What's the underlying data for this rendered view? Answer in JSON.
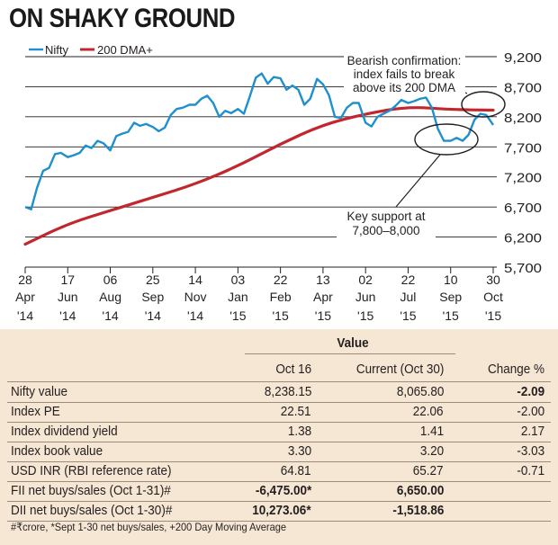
{
  "title": "ON SHAKY GROUND",
  "chart_data": {
    "type": "line",
    "legend": [
      "Nifty",
      "200 DMA+"
    ],
    "legend_position": "top-left",
    "y_axis_side": "right",
    "ylim": [
      5700,
      9200
    ],
    "yticks": [
      "9,200",
      "8,700",
      "8,200",
      "7,700",
      "7,200",
      "6,700",
      "6,200",
      "5,700"
    ],
    "ytick_values": [
      9200,
      8700,
      8200,
      7700,
      7200,
      6700,
      6200,
      5700
    ],
    "xticks": [
      {
        "top": "28",
        "mid": "Apr",
        "bot": "'14"
      },
      {
        "top": "17",
        "mid": "Jun",
        "bot": "'14"
      },
      {
        "top": "06",
        "mid": "Aug",
        "bot": "'14"
      },
      {
        "top": "25",
        "mid": "Sep",
        "bot": "'14"
      },
      {
        "top": "14",
        "mid": "Nov",
        "bot": "'14"
      },
      {
        "top": "03",
        "mid": "Jan",
        "bot": "'15"
      },
      {
        "top": "22",
        "mid": "Feb",
        "bot": "'15"
      },
      {
        "top": "13",
        "mid": "Apr",
        "bot": "'15"
      },
      {
        "top": "02",
        "mid": "Jun",
        "bot": "'15"
      },
      {
        "top": "22",
        "mid": "Jul",
        "bot": "'15"
      },
      {
        "top": "10",
        "mid": "Sep",
        "bot": "'15"
      },
      {
        "top": "30",
        "mid": "Oct",
        "bot": "'15"
      }
    ],
    "xtick_dates": [
      "2014-04-28",
      "2014-06-17",
      "2014-08-06",
      "2014-09-25",
      "2014-11-14",
      "2015-01-03",
      "2015-02-22",
      "2015-04-13",
      "2015-06-02",
      "2015-07-22",
      "2015-09-10",
      "2015-10-30"
    ],
    "grid": "horizontal",
    "series": [
      {
        "name": "Nifty",
        "color": "#1f8fce",
        "x": [
          "2014-04-28",
          "2014-05-05",
          "2014-05-12",
          "2014-05-19",
          "2014-05-26",
          "2014-06-02",
          "2014-06-09",
          "2014-06-17",
          "2014-06-24",
          "2014-07-01",
          "2014-07-08",
          "2014-07-15",
          "2014-07-22",
          "2014-07-29",
          "2014-08-06",
          "2014-08-13",
          "2014-08-20",
          "2014-08-27",
          "2014-09-03",
          "2014-09-10",
          "2014-09-17",
          "2014-09-25",
          "2014-10-02",
          "2014-10-09",
          "2014-10-16",
          "2014-10-23",
          "2014-10-30",
          "2014-11-07",
          "2014-11-14",
          "2014-11-21",
          "2014-11-28",
          "2014-12-05",
          "2014-12-12",
          "2014-12-19",
          "2014-12-26",
          "2015-01-03",
          "2015-01-10",
          "2015-01-17",
          "2015-01-24",
          "2015-01-31",
          "2015-02-07",
          "2015-02-14",
          "2015-02-22",
          "2015-03-01",
          "2015-03-08",
          "2015-03-15",
          "2015-03-22",
          "2015-03-29",
          "2015-04-06",
          "2015-04-13",
          "2015-04-20",
          "2015-04-27",
          "2015-05-04",
          "2015-05-11",
          "2015-05-18",
          "2015-05-25",
          "2015-06-02",
          "2015-06-09",
          "2015-06-16",
          "2015-06-23",
          "2015-06-30",
          "2015-07-07",
          "2015-07-14",
          "2015-07-22",
          "2015-07-29",
          "2015-08-05",
          "2015-08-12",
          "2015-08-19",
          "2015-08-26",
          "2015-09-02",
          "2015-09-10",
          "2015-09-17",
          "2015-09-24",
          "2015-10-01",
          "2015-10-08",
          "2015-10-15",
          "2015-10-22",
          "2015-10-30"
        ],
        "y": [
          6700,
          6660,
          7020,
          7300,
          7350,
          7580,
          7600,
          7530,
          7560,
          7600,
          7720,
          7680,
          7800,
          7760,
          7640,
          7880,
          7920,
          7950,
          8100,
          8050,
          8080,
          8030,
          7960,
          8020,
          8230,
          8330,
          8350,
          8400,
          8400,
          8500,
          8550,
          8430,
          8200,
          8300,
          8260,
          8330,
          8250,
          8540,
          8850,
          8920,
          8750,
          8860,
          8840,
          8650,
          8720,
          8650,
          8400,
          8500,
          8830,
          8740,
          8560,
          8200,
          8180,
          8350,
          8430,
          8430,
          8100,
          8040,
          8200,
          8250,
          8300,
          8380,
          8480,
          8430,
          8460,
          8500,
          8520,
          8350,
          8000,
          7800,
          7800,
          7850,
          7800,
          7900,
          8150,
          8250,
          8230,
          8065
        ]
      },
      {
        "name": "200 DMA+",
        "color": "#c1272d",
        "x": [
          "2014-04-28",
          "2014-06-17",
          "2014-08-06",
          "2014-09-25",
          "2014-11-14",
          "2015-01-03",
          "2015-02-22",
          "2015-04-13",
          "2015-06-02",
          "2015-07-22",
          "2015-09-10",
          "2015-10-30"
        ],
        "y": [
          6080,
          6420,
          6640,
          6860,
          7080,
          7380,
          7750,
          8070,
          8250,
          8370,
          8320,
          8310
        ]
      }
    ],
    "annotations": [
      {
        "text": [
          "Bearish confirmation:",
          "index fails to break",
          "above its 200 DMA"
        ]
      },
      {
        "text": [
          "Key support at",
          "7,800–8,000"
        ]
      }
    ]
  },
  "table": {
    "group_header": "Value",
    "headers": [
      "Oct 16",
      "Current (Oct 30)",
      "Change %"
    ],
    "rows": [
      {
        "label": "Nifty value",
        "oct16": "8,238.15",
        "current": "8,065.80",
        "change": "-2.09",
        "bold": [
          false,
          false,
          true
        ]
      },
      {
        "label": "Index PE",
        "oct16": "22.51",
        "current": "22.06",
        "change": "-2.00",
        "bold": [
          false,
          false,
          false
        ]
      },
      {
        "label": "Index dividend yield",
        "oct16": "1.38",
        "current": "1.41",
        "change": "2.17",
        "bold": [
          false,
          false,
          false
        ]
      },
      {
        "label": "Index book value",
        "oct16": "3.30",
        "current": "3.20",
        "change": "-3.03",
        "bold": [
          false,
          false,
          false
        ]
      },
      {
        "label": "USD INR (RBI reference rate)",
        "oct16": "64.81",
        "current": "65.27",
        "change": "-0.71",
        "bold": [
          false,
          false,
          false
        ]
      },
      {
        "label": "FII net buys/sales (Oct 1-31)#",
        "oct16": "-6,475.00*",
        "current": "6,650.00",
        "change": "",
        "bold": [
          true,
          true,
          false
        ]
      },
      {
        "label": "DII net buys/sales (Oct 1-30)#",
        "oct16": "10,273.06*",
        "current": "-1,518.86",
        "change": "",
        "bold": [
          true,
          true,
          false
        ]
      }
    ],
    "footnote": "#₹crore, *Sept 1-30 net buys/sales, +200 Day Moving Average"
  }
}
